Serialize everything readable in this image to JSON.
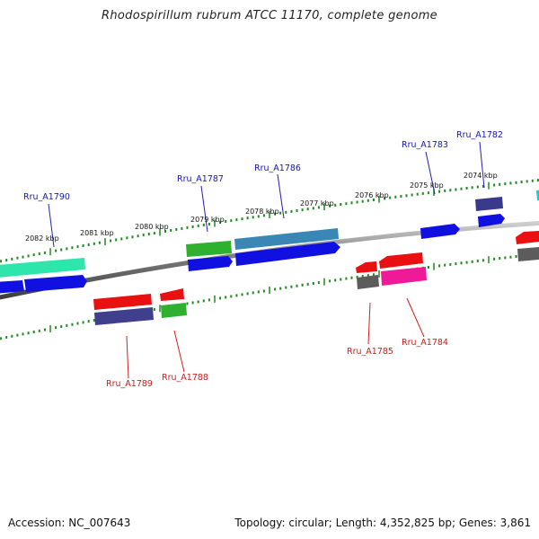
{
  "title": "Rhodospirillum rubrum ATCC 11170, complete genome",
  "footer": {
    "accession": "Accession: NC_007643",
    "summary": "Topology: circular; Length: 4,352,825 bp; Genes: 3,861"
  },
  "colors": {
    "backbone": "#7a7a7a",
    "tick": "#1f8a1f",
    "forward_label": "#1515b5",
    "reverse_label": "#cc1a1a"
  },
  "kbp_labels": [
    "2082 kbp",
    "2081 kbp",
    "2080 kbp",
    "2079 kbp",
    "2078 kbp",
    "2077 kbp",
    "2076 kbp",
    "2075 kbp",
    "2074 kbp"
  ],
  "forward_gene_labels": [
    "Rru_A1790",
    "Rru_A1787",
    "Rru_A1786",
    "Rru_A1783",
    "Rru_A1782"
  ],
  "reverse_gene_labels": [
    "Rru_A1789",
    "Rru_A1788",
    "Rru_A1785",
    "Rru_A1784"
  ]
}
